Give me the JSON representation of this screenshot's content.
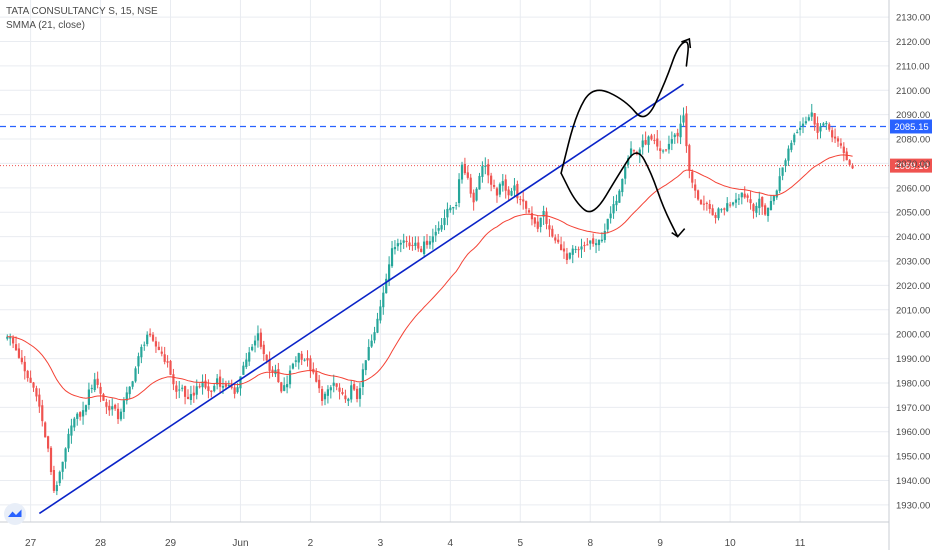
{
  "legend": {
    "title": "TATA CONSULTANCY S, 15, NSE",
    "indicator": "SMMA (21, close)"
  },
  "colors": {
    "up": "#26a69a",
    "down": "#ef5350",
    "smma": "#f44336",
    "trendline": "#0a23c8",
    "resistance": "#2962ff",
    "current": "#ef5350",
    "drawing": "#000000",
    "grid": "#e9ecf1",
    "axis_text": "#4a4a4a"
  },
  "chart_data": {
    "type": "candlestick",
    "ylim": [
      1923,
      2137
    ],
    "y_ticks": [
      "1930.00",
      "1940.00",
      "1950.00",
      "1960.00",
      "1970.00",
      "1980.00",
      "1990.00",
      "2000.00",
      "2010.00",
      "2020.00",
      "2030.00",
      "2040.00",
      "2050.00",
      "2060.00",
      "2070.00",
      "2080.00",
      "2090.00",
      "2100.00",
      "2110.00",
      "2120.00",
      "2130.00"
    ],
    "x_ticks": [
      {
        "label": "27",
        "index": 8
      },
      {
        "label": "28",
        "index": 32
      },
      {
        "label": "29",
        "index": 56
      },
      {
        "label": "Jun",
        "index": 80
      },
      {
        "label": "2",
        "index": 104
      },
      {
        "label": "3",
        "index": 128
      },
      {
        "label": "4",
        "index": 152
      },
      {
        "label": "5",
        "index": 176
      },
      {
        "label": "8",
        "index": 200
      },
      {
        "label": "9",
        "index": 224
      },
      {
        "label": "10",
        "index": 248
      },
      {
        "label": "11",
        "index": 272
      }
    ],
    "x_range": [
      -2.5,
      302.5
    ],
    "closes": [
      2000,
      1996,
      1991,
      1984,
      1980,
      1976,
      1964,
      1952,
      1936,
      1942,
      1952,
      1964,
      1966,
      1968,
      1976,
      1982,
      1976,
      1970,
      1970,
      1966,
      1972,
      1978,
      1986,
      1994,
      2000,
      1996,
      1994,
      1990,
      1984,
      1976,
      1978,
      1972,
      1976,
      1980,
      1978,
      1976,
      1982,
      1978,
      1980,
      1974,
      1984,
      1990,
      1994,
      2000,
      1992,
      1986,
      1984,
      1976,
      1980,
      1988,
      1992,
      1990,
      1986,
      1980,
      1974,
      1976,
      1980,
      1976,
      1972,
      1978,
      1974,
      1984,
      1994,
      2000,
      2012,
      2024,
      2034,
      2038,
      2040,
      2036,
      2038,
      2035,
      2038,
      2040,
      2044,
      2048,
      2052,
      2054,
      2070,
      2064,
      2054,
      2066,
      2070,
      2060,
      2058,
      2062,
      2058,
      2060,
      2054,
      2052,
      2048,
      2044,
      2050,
      2042,
      2038,
      2036,
      2030,
      2034,
      2034,
      2036,
      2038,
      2036,
      2040,
      2046,
      2052,
      2060,
      2070,
      2076,
      2074,
      2078,
      2080,
      2078,
      2074,
      2076,
      2080,
      2082,
      2090,
      2066,
      2058,
      2054,
      2052,
      2048,
      2050,
      2052,
      2054,
      2056,
      2058,
      2056,
      2052,
      2054,
      2050,
      2054,
      2060,
      2068,
      2076,
      2082,
      2086,
      2088,
      2090,
      2084,
      2086,
      2084,
      2080,
      2076,
      2072,
      2068
    ],
    "bar_spacing": 3.68,
    "smma": {
      "name": "SMMA (21, close)",
      "period": 21
    },
    "current_price": {
      "label": "2069.10",
      "value": 2069.1
    },
    "resistance": {
      "label": "2085.15",
      "value": 2085.15
    },
    "trendline": {
      "from": {
        "index": 11,
        "price": 1926.5
      },
      "to": {
        "index": 232,
        "price": 2102.5
      }
    },
    "projections": {
      "up": [
        [
          190,
          2066
        ],
        [
          195,
          2090
        ],
        [
          201,
          2102
        ],
        [
          212,
          2096
        ],
        [
          219,
          2086
        ],
        [
          226,
          2104
        ],
        [
          230,
          2118
        ],
        [
          234,
          2121
        ],
        [
          233,
          2110
        ]
      ],
      "down": [
        [
          190,
          2066
        ],
        [
          195,
          2054
        ],
        [
          201,
          2048
        ],
        [
          210,
          2066
        ],
        [
          216,
          2077
        ],
        [
          221,
          2066
        ],
        [
          225,
          2052
        ],
        [
          230,
          2040
        ]
      ]
    }
  }
}
